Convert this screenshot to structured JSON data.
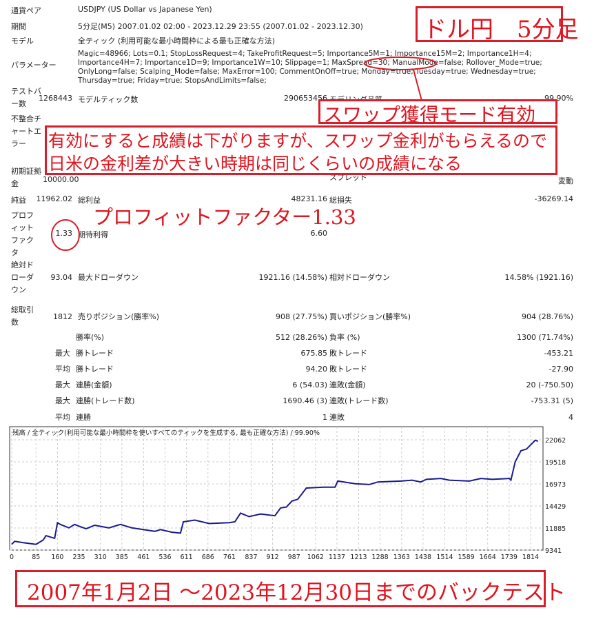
{
  "report": {
    "symbol_label": "通貨ペア",
    "symbol": "USDJPY (US Dollar vs Japanese Yen)",
    "period_label": "期間",
    "period": "5分足(M5) 2007.01.02 02:00 - 2023.12.29 23:55 (2007.01.02 - 2023.12.30)",
    "model_label": "モデル",
    "model": "全ティック (利用可能な最小時間枠による最も正確な方法)",
    "params_label": "パラメーター",
    "params": "Magic=48966; Lots=0.1; StopLossRequest=4; TakeProfitRequest=5; Importance5M=1; Importance15M=2; Importance1H=4; Importance4H=7; Importance1D=9; Importance1W=10; Slippage=1; MaxSpread=30; ManualMode=false; Rollover_Mode=true; OnlyLong=false; Scalping_Mode=false; MaxError=100; CommentOnOff=true; Monday=true; Tuesday=true; Wednesday=true; Thursday=true; Friday=true; StopsAndLimits=false;"
  },
  "stats": {
    "bars_label": "テストバー数",
    "bars": "1268443",
    "ticks_label": "モデルティック数",
    "ticks": "290653456",
    "quality_label": "モデリング品質",
    "quality": "99.90%",
    "mismatch_label": "不整合チャートエラー",
    "deposit_label": "初期証拠金",
    "deposit": "10000.00",
    "spread_label": "スプレッド",
    "spread": "変動",
    "net_label": "純益",
    "net": "11962.02",
    "gross_profit_label": "総利益",
    "gross_profit": "48231.16",
    "gross_loss_label": "総損失",
    "gross_loss": "-36269.14",
    "pf_label": "プロフィットファクタ",
    "pf": "1.33",
    "expected_label": "期待利得",
    "expected": "6.60",
    "abs_dd_label": "絶対ドローダウン",
    "abs_dd": "93.04",
    "max_dd_label": "最大ドローダウン",
    "max_dd": "1921.16 (14.58%)",
    "rel_dd_label": "相対ドローダウン",
    "rel_dd": "14.58% (1921.16)",
    "trades_label": "総取引数",
    "trades": "1812",
    "short_label": "売りポジション(勝率%)",
    "short": "908 (27.75%)",
    "long_label": "買いポジション(勝率%)",
    "long": "904 (28.76%)",
    "rows": [
      {
        "prefix": "",
        "l1": "勝率(%)",
        "v1": "512 (28.26%)",
        "l2": "負率 (%)",
        "v2": "1300 (71.74%)"
      },
      {
        "prefix": "最大",
        "l1": "勝トレード",
        "v1": "675.85",
        "l2": "敗トレード",
        "v2": "-453.21"
      },
      {
        "prefix": "平均",
        "l1": "勝トレード",
        "v1": "94.20",
        "l2": "敗トレード",
        "v2": "-27.90"
      },
      {
        "prefix": "最大",
        "l1": "連勝(金額)",
        "v1": "6 (54.03)",
        "l2": "連敗(金額)",
        "v2": "20 (-750.50)"
      },
      {
        "prefix": "最大",
        "l1": "連勝(トレード数)",
        "v1": "1690.46 (3)",
        "l2": "連敗(トレード数)",
        "v2": "-753.31 (5)"
      },
      {
        "prefix": "平均",
        "l1": "連勝",
        "v1": "1",
        "l2": "連敗",
        "v2": "4"
      }
    ]
  },
  "annotations": {
    "pair_tf": "ドル円　5分足",
    "swap_mode": "スワップ獲得モード有効",
    "swap_note_1": "有効にすると成績は下がりますが、スワップ金利がもらえるので",
    "swap_note_2": "日米の金利差が大きい時期は同じくらいの成績になる",
    "pf_note": "プロフィットファクター1.33",
    "period_note": "2007年1月2日 ～2023年12月30日までのバックテスト",
    "color": "#e0141e"
  },
  "chart_data": {
    "type": "line",
    "title": "残高 / 全ティック(利用可能な最小時間枠を使いすべてのティックを生成する, 最も正確な方法) / 99.90%",
    "xlim": [
      0,
      1850
    ],
    "ylim": [
      9341,
      22800
    ],
    "x_ticks": [
      0,
      85,
      160,
      235,
      310,
      385,
      461,
      536,
      611,
      686,
      761,
      837,
      912,
      987,
      1062,
      1137,
      1213,
      1288,
      1363,
      1438,
      1514,
      1589,
      1664,
      1739,
      1814
    ],
    "y_ticks": [
      9341,
      11885,
      14429,
      16973,
      19518,
      22062
    ],
    "grid": true,
    "line_color": "#1a1a8c",
    "series": [
      {
        "x": [
          0,
          10,
          40,
          85,
          110,
          120,
          130,
          150,
          160,
          170,
          200,
          220,
          235,
          260,
          290,
          340,
          380,
          420,
          460,
          500,
          520,
          560,
          590,
          600,
          640,
          690,
          760,
          780,
          800,
          830,
          870,
          920,
          940,
          960,
          980,
          1000,
          1030,
          1090,
          1130,
          1140,
          1200,
          1250,
          1280,
          1360,
          1400,
          1430,
          1450,
          1500,
          1530,
          1600,
          1640,
          1680,
          1740,
          1745,
          1760,
          1780,
          1800,
          1830,
          1840
        ],
        "y": [
          10000,
          10350,
          10200,
          10000,
          10500,
          11000,
          10900,
          10700,
          12500,
          12300,
          11900,
          12300,
          12100,
          11800,
          12200,
          11900,
          12300,
          11900,
          11700,
          11500,
          11700,
          11400,
          11300,
          12600,
          12800,
          12400,
          12500,
          12600,
          13600,
          13200,
          13500,
          13300,
          14200,
          14300,
          15000,
          15200,
          16500,
          16600,
          16600,
          17300,
          17000,
          16900,
          17200,
          17300,
          17400,
          17200,
          17500,
          17600,
          17400,
          17300,
          17600,
          17500,
          17600,
          17400,
          19500,
          20800,
          21000,
          22000,
          21900
        ]
      }
    ]
  }
}
